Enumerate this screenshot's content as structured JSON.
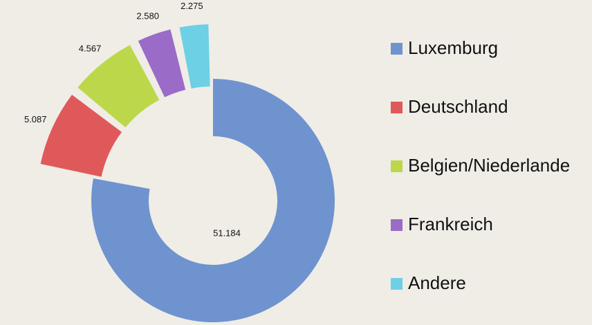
{
  "chart_data": {
    "type": "donut",
    "categories": [
      "Luxemburg",
      "Deutschland",
      "Belgien/Niederlande",
      "Frankreich",
      "Andere"
    ],
    "values": [
      51184,
      5087,
      4567,
      2580,
      2275
    ],
    "value_labels": [
      "51.184",
      "5.087",
      "4.567",
      "2.580",
      "2.275"
    ],
    "colors": [
      "#6f93cf",
      "#e0595a",
      "#bcd84a",
      "#9a6cc8",
      "#6dd0e4"
    ],
    "legend": "right"
  }
}
